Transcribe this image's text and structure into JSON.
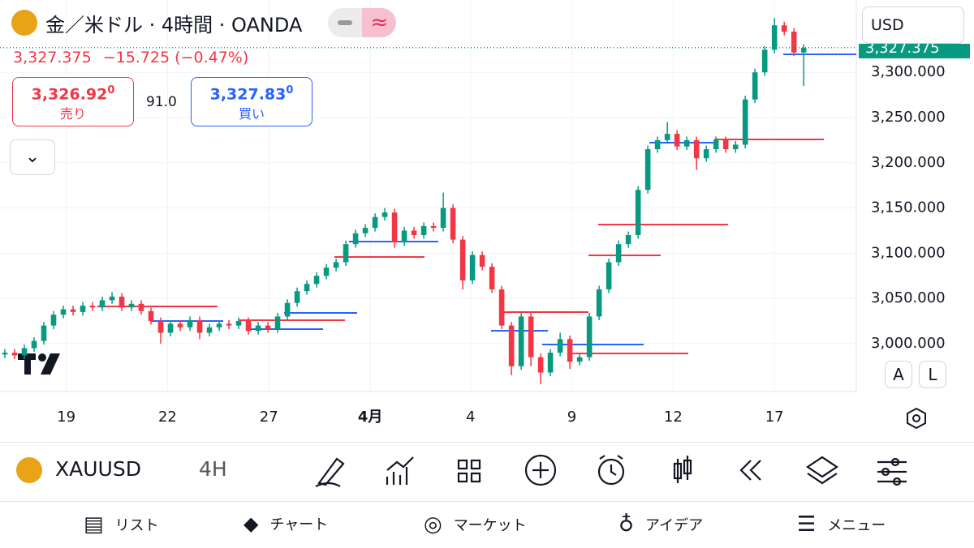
{
  "header": {
    "title": "金／米ドル · 4時間 · OANDA",
    "price": "3,327.375",
    "change": "−15.725 (−0.47%)",
    "currency": "USD"
  },
  "quote": {
    "sell_price": "3,326.92",
    "sell_sup": "0",
    "sell_label": "売り",
    "spread": "91.0",
    "buy_price": "3,327.83",
    "buy_sup": "0",
    "buy_label": "買い",
    "last_price_tag": "3,327.375"
  },
  "chart_data": {
    "type": "candlestick",
    "up_color": "#089981",
    "down_color": "#f23645",
    "open": [
      2988,
      2990,
      2987,
      2995,
      3003,
      3020,
      3032,
      3038,
      3035,
      3042,
      3040,
      3048,
      3052,
      3040,
      3044,
      3036,
      3025,
      3012,
      3022,
      3018,
      3026,
      3012,
      3018,
      3022,
      3020,
      3025,
      3014,
      3020,
      3016,
      3030,
      3045,
      3058,
      3066,
      3075,
      3084,
      3090,
      3110,
      3122,
      3128,
      3140,
      3145,
      3112,
      3125,
      3120,
      3130,
      3128,
      3150,
      3115,
      3070,
      3098,
      3085,
      3060,
      3020,
      2975,
      3030,
      2985,
      2968,
      2990,
      3005,
      2980,
      2985,
      3030,
      3060,
      3090,
      3110,
      3120,
      3170,
      3215,
      3225,
      3232,
      3218,
      3225,
      3205,
      3215,
      3225,
      3215,
      3220,
      3270,
      3300,
      3325,
      3352,
      3345,
      3322
    ],
    "high": [
      2994,
      2994,
      2999,
      3007,
      3024,
      3036,
      3042,
      3042,
      3046,
      3046,
      3052,
      3057,
      3056,
      3048,
      3048,
      3040,
      3029,
      3026,
      3026,
      3030,
      3030,
      3022,
      3026,
      3026,
      3029,
      3029,
      3024,
      3024,
      3034,
      3049,
      3062,
      3070,
      3079,
      3088,
      3094,
      3114,
      3126,
      3132,
      3144,
      3150,
      3149,
      3129,
      3129,
      3134,
      3134,
      3167,
      3154,
      3119,
      3102,
      3102,
      3089,
      3064,
      3024,
      3034,
      3034,
      2989,
      2994,
      3012,
      3009,
      2989,
      3034,
      3064,
      3094,
      3114,
      3124,
      3174,
      3219,
      3229,
      3245,
      3236,
      3229,
      3229,
      3219,
      3229,
      3229,
      3224,
      3274,
      3304,
      3329,
      3360,
      3356,
      3349,
      3331
    ],
    "low": [
      2984,
      2983,
      2983,
      2991,
      2999,
      3016,
      3028,
      3031,
      3031,
      3036,
      3036,
      3044,
      3036,
      3036,
      3032,
      3021,
      3000,
      3008,
      3014,
      3014,
      3005,
      3008,
      3014,
      3016,
      3016,
      3010,
      3010,
      3012,
      3012,
      3026,
      3041,
      3054,
      3062,
      3071,
      3080,
      3086,
      3106,
      3118,
      3124,
      3136,
      3106,
      3108,
      3116,
      3116,
      3124,
      3124,
      3111,
      3060,
      3066,
      3081,
      3056,
      3016,
      2965,
      2971,
      2975,
      2955,
      2964,
      2986,
      2972,
      2976,
      2981,
      3026,
      3056,
      3086,
      3106,
      3116,
      3166,
      3211,
      3221,
      3214,
      3214,
      3192,
      3201,
      3211,
      3211,
      3211,
      3216,
      3266,
      3296,
      3321,
      3341,
      3318,
      3285
    ],
    "close": [
      2990,
      2987,
      2995,
      3003,
      3020,
      3032,
      3038,
      3035,
      3042,
      3040,
      3048,
      3052,
      3040,
      3044,
      3036,
      3025,
      3012,
      3022,
      3018,
      3026,
      3012,
      3018,
      3022,
      3020,
      3025,
      3014,
      3020,
      3016,
      3030,
      3045,
      3058,
      3066,
      3075,
      3084,
      3090,
      3110,
      3122,
      3128,
      3140,
      3145,
      3112,
      3125,
      3120,
      3130,
      3128,
      3150,
      3115,
      3070,
      3098,
      3085,
      3060,
      3020,
      2975,
      3030,
      2985,
      2968,
      2990,
      3005,
      2980,
      2985,
      3030,
      3060,
      3090,
      3110,
      3120,
      3170,
      3215,
      3225,
      3232,
      3218,
      3225,
      3205,
      3215,
      3225,
      3215,
      3220,
      3270,
      3300,
      3325,
      3352,
      3345,
      3322,
      3327
    ],
    "last_price": 3327.375,
    "xlim": [
      -0.5,
      87.4
    ],
    "xticks": [
      {
        "value": 6.3,
        "label": "19"
      },
      {
        "value": 16.7,
        "label": "22"
      },
      {
        "value": 27.1,
        "label": "27"
      },
      {
        "value": 37.5,
        "label": "4月"
      },
      {
        "value": 47.8,
        "label": "4"
      },
      {
        "value": 58.2,
        "label": "9"
      },
      {
        "value": 68.6,
        "label": "12"
      },
      {
        "value": 79,
        "label": "17"
      }
    ],
    "ylim": [
      2947,
      3380
    ],
    "yticks": [
      {
        "value": 3000,
        "label": "3,000.000"
      },
      {
        "value": 3050,
        "label": "3,050.000"
      },
      {
        "value": 3100,
        "label": "3,100.000"
      },
      {
        "value": 3150,
        "label": "3,150.000"
      },
      {
        "value": 3200,
        "label": "3,200.000"
      },
      {
        "value": 3250,
        "label": "3,250.000"
      },
      {
        "value": 3300,
        "label": "3,300.000"
      }
    ],
    "grid": true
  },
  "chart_buttons": {
    "auto": "A",
    "log": "L"
  },
  "toolbar": {
    "symbol": "XAUUSD",
    "interval": "4H"
  },
  "nav": {
    "items": [
      "リスト",
      "チャート",
      "マーケット",
      "アイデア",
      "メニュー"
    ]
  }
}
